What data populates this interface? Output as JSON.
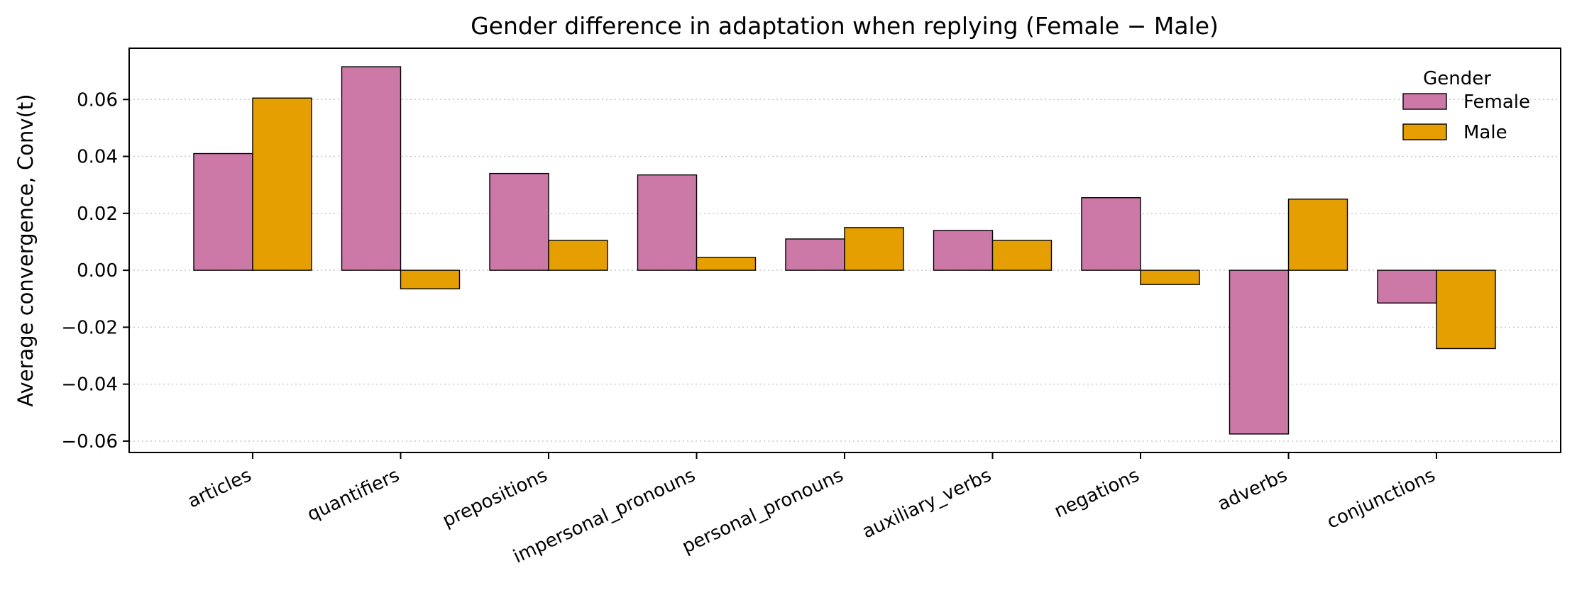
{
  "chart_data": {
    "type": "bar",
    "title": "Gender difference in adaptation when replying (Female − Male)",
    "xlabel": "",
    "ylabel": "Average convergence, Conv(t)",
    "ylim": [
      -0.064,
      0.078
    ],
    "yticks": [
      -0.06,
      -0.04,
      -0.02,
      0.0,
      0.02,
      0.04,
      0.06
    ],
    "ytick_labels": [
      "−0.06",
      "−0.04",
      "−0.02",
      "0.00",
      "0.02",
      "0.04",
      "0.06"
    ],
    "grid": "y-dotted",
    "legend": {
      "title": "Gender",
      "placement": "top-right"
    },
    "categories": [
      "articles",
      "quantifiers",
      "prepositions",
      "impersonal_pronouns",
      "personal_pronouns",
      "auxiliary_verbs",
      "negations",
      "adverbs",
      "conjunctions"
    ],
    "series": [
      {
        "name": "Female",
        "color": "#cc79a7",
        "values": [
          0.041,
          0.0715,
          0.034,
          0.0335,
          0.011,
          0.014,
          0.0255,
          -0.0575,
          -0.0115
        ]
      },
      {
        "name": "Male",
        "color": "#e69f00",
        "values": [
          0.0605,
          -0.0065,
          0.0105,
          0.0045,
          0.015,
          0.0105,
          -0.005,
          0.025,
          -0.0275
        ]
      }
    ]
  }
}
